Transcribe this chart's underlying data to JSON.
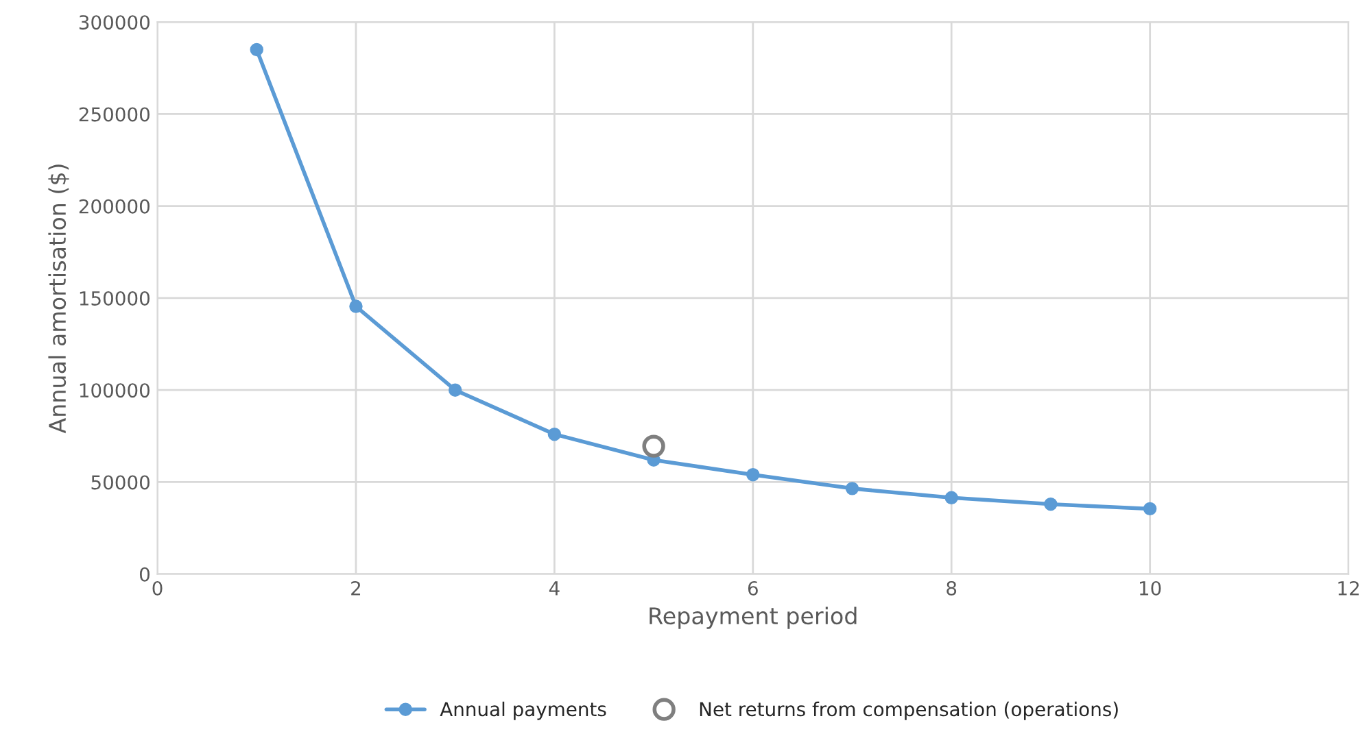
{
  "chart_data": {
    "type": "line",
    "xlabel": "Repayment period",
    "ylabel": "Annual amortisation ($)",
    "xlim": [
      0,
      12
    ],
    "xticks": [
      0,
      2,
      4,
      6,
      8,
      10,
      12
    ],
    "ylim": [
      0,
      300000
    ],
    "yticks": [
      0,
      50000,
      100000,
      150000,
      200000,
      250000,
      300000
    ],
    "grid": true,
    "legend": "bottom",
    "series": [
      {
        "name": "Annual payments",
        "color": "#5b9bd5",
        "marker": "circle",
        "x": [
          1,
          2,
          3,
          4,
          5,
          6,
          7,
          8,
          9,
          10
        ],
        "values": [
          285000,
          145500,
          100000,
          76000,
          62000,
          54000,
          46500,
          41500,
          38000,
          35500
        ]
      },
      {
        "name": "Net returns from compensation (operations)",
        "color": "#7f7f7f",
        "type": "scatter",
        "marker": "circle",
        "x": [
          5
        ],
        "values": [
          69500
        ]
      }
    ]
  }
}
